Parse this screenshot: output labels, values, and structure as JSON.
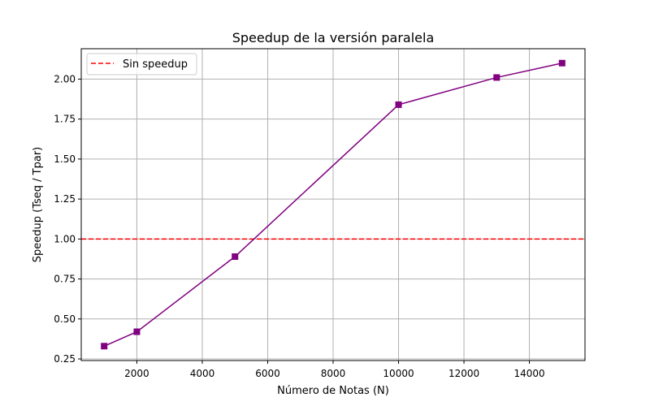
{
  "chart_data": {
    "type": "line",
    "title": "Speedup de la versión paralela",
    "xlabel": "Número de Notas (N)",
    "ylabel": "Speedup (Tseq / Tpar)",
    "xlim": [
      300,
      15700
    ],
    "ylim": [
      0.24,
      2.19
    ],
    "xticks": [
      2000,
      4000,
      6000,
      8000,
      10000,
      12000,
      14000
    ],
    "xtick_labels": [
      "2000",
      "4000",
      "6000",
      "8000",
      "10000",
      "12000",
      "14000"
    ],
    "yticks": [
      0.25,
      0.5,
      0.75,
      1.0,
      1.25,
      1.5,
      1.75,
      2.0
    ],
    "ytick_labels": [
      "0.25",
      "0.50",
      "0.75",
      "1.00",
      "1.25",
      "1.50",
      "1.75",
      "2.00"
    ],
    "grid": true,
    "legend_position": "upper-left",
    "series": [
      {
        "color": "#800080",
        "marker": "square",
        "x": [
          1000,
          2000,
          5000,
          10000,
          13000,
          15000
        ],
        "y": [
          0.33,
          0.42,
          0.89,
          1.84,
          2.01,
          2.1
        ]
      }
    ],
    "reference_lines": [
      {
        "name": "Sin speedup",
        "y": 1.0,
        "color": "#ff0000",
        "style": "dashed"
      }
    ]
  }
}
